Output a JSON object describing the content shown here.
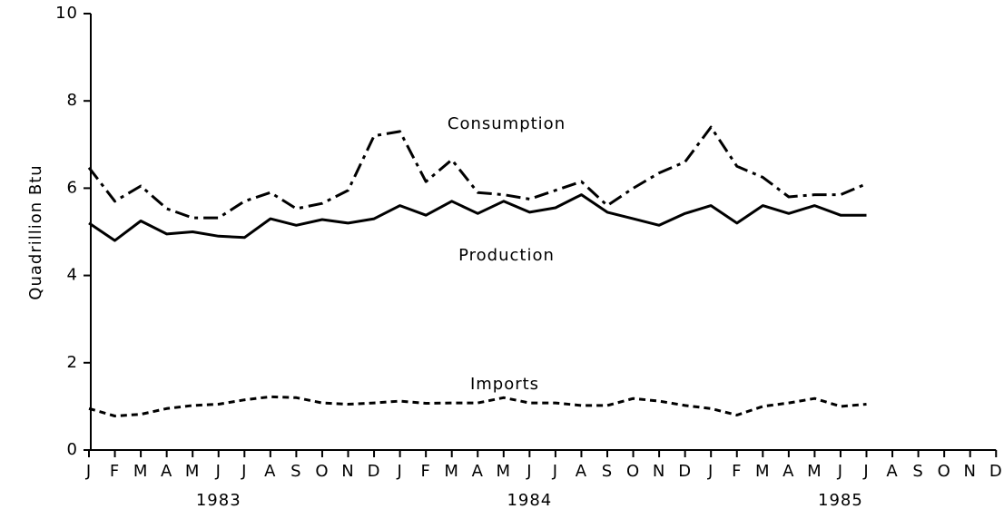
{
  "chart_data": {
    "type": "line",
    "y_label": "Quadrillion Btu",
    "categories": [
      "J",
      "F",
      "M",
      "A",
      "M",
      "J",
      "J",
      "A",
      "S",
      "O",
      "N",
      "D",
      "J",
      "F",
      "M",
      "A",
      "M",
      "J",
      "J",
      "A",
      "S",
      "O",
      "N",
      "D",
      "J",
      "F",
      "M",
      "A",
      "M",
      "J",
      "J",
      "A",
      "S",
      "O",
      "N",
      "D"
    ],
    "year_labels": [
      "1983",
      "1984",
      "1985"
    ],
    "ylim": [
      0,
      10
    ],
    "yticks": [
      0,
      2,
      4,
      6,
      8,
      10
    ],
    "series": [
      {
        "name": "Consumption",
        "color": "#000000",
        "style": "dash-dot",
        "values": [
          6.47,
          5.7,
          6.05,
          5.53,
          5.32,
          5.32,
          5.7,
          5.9,
          5.53,
          5.65,
          5.95,
          7.2,
          7.3,
          6.15,
          6.65,
          5.9,
          5.85,
          5.75,
          5.95,
          6.15,
          5.6,
          6.0,
          6.35,
          6.6,
          7.4,
          6.5,
          6.25,
          5.8,
          5.85,
          5.85,
          6.1,
          null,
          null,
          null,
          null,
          null
        ]
      },
      {
        "name": "Production",
        "color": "#000000",
        "style": "solid",
        "values": [
          5.2,
          4.8,
          5.25,
          4.95,
          5.0,
          4.9,
          4.87,
          5.3,
          5.15,
          5.28,
          5.2,
          5.3,
          5.6,
          5.38,
          5.7,
          5.42,
          5.7,
          5.45,
          5.55,
          5.85,
          5.45,
          5.3,
          5.15,
          5.42,
          5.6,
          5.2,
          5.6,
          5.42,
          5.6,
          5.38,
          5.38,
          null,
          null,
          null,
          null,
          null
        ]
      },
      {
        "name": "Imports",
        "color": "#000000",
        "style": "dotted",
        "values": [
          0.95,
          0.78,
          0.82,
          0.95,
          1.02,
          1.05,
          1.15,
          1.22,
          1.2,
          1.08,
          1.05,
          1.08,
          1.12,
          1.07,
          1.08,
          1.08,
          1.2,
          1.08,
          1.08,
          1.02,
          1.02,
          1.18,
          1.12,
          1.02,
          0.95,
          0.8,
          1.0,
          1.08,
          1.18,
          1.0,
          1.05,
          null,
          null,
          null,
          null,
          null
        ]
      }
    ]
  }
}
